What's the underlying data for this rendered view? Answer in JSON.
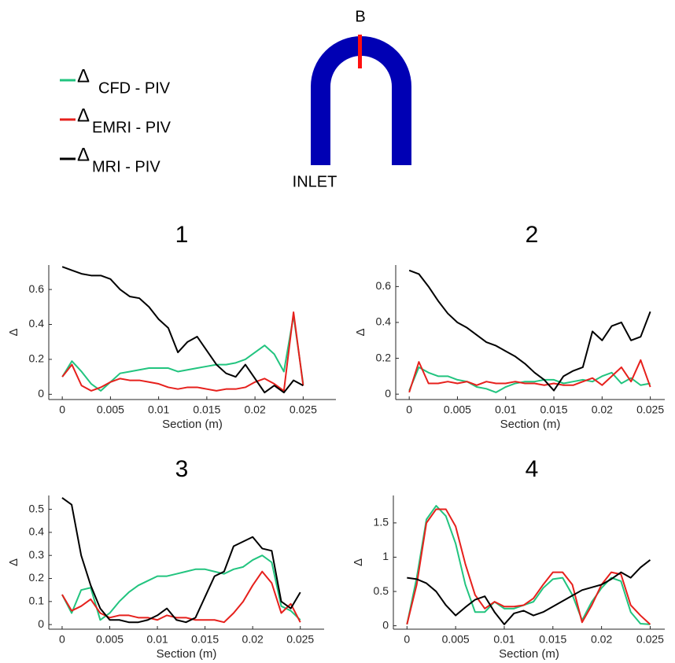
{
  "diagram": {
    "top_label": "B",
    "inlet_label": "INLET"
  },
  "legend": [
    {
      "symbol": "Δ",
      "label": "CFD - PIV",
      "color": "#22c47f"
    },
    {
      "symbol": "Δ",
      "label": "EMRI - PIV",
      "color": "#e6201c"
    },
    {
      "symbol": "Δ",
      "label": "MRI - PIV",
      "color": "#000000"
    }
  ],
  "chart_data": [
    {
      "type": "line",
      "title": "1",
      "xlabel": "Section (m)",
      "ylabel": "Δ",
      "x": [
        0,
        0.001,
        0.002,
        0.003,
        0.004,
        0.005,
        0.006,
        0.007,
        0.008,
        0.009,
        0.01,
        0.011,
        0.012,
        0.013,
        0.014,
        0.015,
        0.016,
        0.017,
        0.018,
        0.019,
        0.02,
        0.021,
        0.022,
        0.023,
        0.024,
        0.025
      ],
      "xlim": [
        -0.0014,
        0.0284
      ],
      "xticks": [
        0,
        0.005,
        0.01,
        0.015,
        0.02,
        0.025
      ],
      "ylim": [
        -0.03,
        0.74
      ],
      "yticks": [
        0,
        0.2,
        0.4,
        0.6
      ],
      "series": [
        {
          "color": "#22c47f",
          "values": [
            0.1,
            0.19,
            0.13,
            0.06,
            0.02,
            0.07,
            0.12,
            0.13,
            0.14,
            0.15,
            0.15,
            0.15,
            0.13,
            0.14,
            0.15,
            0.16,
            0.17,
            0.17,
            0.18,
            0.2,
            0.24,
            0.28,
            0.23,
            0.13,
            0.45,
            0.06
          ]
        },
        {
          "color": "#e6201c",
          "values": [
            0.1,
            0.17,
            0.05,
            0.02,
            0.04,
            0.07,
            0.09,
            0.08,
            0.08,
            0.07,
            0.06,
            0.04,
            0.03,
            0.04,
            0.04,
            0.03,
            0.02,
            0.03,
            0.03,
            0.04,
            0.07,
            0.09,
            0.06,
            0.02,
            0.47,
            0.05
          ]
        },
        {
          "color": "#000000",
          "values": [
            0.73,
            0.71,
            0.69,
            0.68,
            0.68,
            0.66,
            0.6,
            0.56,
            0.55,
            0.5,
            0.43,
            0.38,
            0.24,
            0.3,
            0.33,
            0.25,
            0.17,
            0.12,
            0.1,
            0.17,
            0.09,
            0.01,
            0.05,
            0.01,
            0.08,
            0.05
          ]
        }
      ]
    },
    {
      "type": "line",
      "title": "2",
      "xlabel": "Section (m)",
      "ylabel": "Δ",
      "x": [
        0,
        0.001,
        0.002,
        0.003,
        0.004,
        0.005,
        0.006,
        0.007,
        0.008,
        0.009,
        0.01,
        0.011,
        0.012,
        0.013,
        0.014,
        0.015,
        0.016,
        0.017,
        0.018,
        0.019,
        0.02,
        0.021,
        0.022,
        0.023,
        0.024,
        0.025
      ],
      "xlim": [
        -0.0014,
        0.0265
      ],
      "xticks": [
        0,
        0.005,
        0.01,
        0.015,
        0.02,
        0.025
      ],
      "ylim": [
        -0.03,
        0.72
      ],
      "yticks": [
        0,
        0.2,
        0.4,
        0.6
      ],
      "series": [
        {
          "color": "#22c47f",
          "values": [
            0.02,
            0.15,
            0.12,
            0.1,
            0.1,
            0.08,
            0.07,
            0.04,
            0.03,
            0.01,
            0.04,
            0.06,
            0.07,
            0.07,
            0.08,
            0.08,
            0.06,
            0.07,
            0.08,
            0.07,
            0.1,
            0.12,
            0.06,
            0.09,
            0.05,
            0.06
          ]
        },
        {
          "color": "#e6201c",
          "values": [
            0.01,
            0.18,
            0.06,
            0.06,
            0.07,
            0.06,
            0.07,
            0.05,
            0.07,
            0.06,
            0.06,
            0.07,
            0.06,
            0.06,
            0.05,
            0.06,
            0.05,
            0.05,
            0.07,
            0.09,
            0.05,
            0.1,
            0.15,
            0.07,
            0.19,
            0.04
          ]
        },
        {
          "color": "#000000",
          "values": [
            0.69,
            0.67,
            0.6,
            0.52,
            0.45,
            0.4,
            0.37,
            0.33,
            0.29,
            0.27,
            0.24,
            0.21,
            0.17,
            0.12,
            0.08,
            0.02,
            0.1,
            0.13,
            0.15,
            0.35,
            0.3,
            0.38,
            0.4,
            0.3,
            0.32,
            0.46
          ]
        }
      ]
    },
    {
      "type": "line",
      "title": "3",
      "xlabel": "Section (m)",
      "ylabel": "Δ",
      "x": [
        0,
        0.001,
        0.002,
        0.003,
        0.004,
        0.005,
        0.006,
        0.007,
        0.008,
        0.009,
        0.01,
        0.011,
        0.012,
        0.013,
        0.014,
        0.015,
        0.016,
        0.017,
        0.018,
        0.019,
        0.02,
        0.021,
        0.022,
        0.023,
        0.024,
        0.025
      ],
      "xlim": [
        -0.0014,
        0.0275
      ],
      "xticks": [
        0,
        0.005,
        0.01,
        0.015,
        0.02,
        0.025
      ],
      "ylim": [
        -0.02,
        0.56
      ],
      "yticks": [
        0,
        0.1,
        0.2,
        0.3,
        0.4,
        0.5
      ],
      "series": [
        {
          "color": "#22c47f",
          "values": [
            0.13,
            0.05,
            0.15,
            0.16,
            0.02,
            0.05,
            0.1,
            0.14,
            0.17,
            0.19,
            0.21,
            0.21,
            0.22,
            0.23,
            0.24,
            0.24,
            0.23,
            0.22,
            0.24,
            0.25,
            0.28,
            0.3,
            0.27,
            0.08,
            0.06,
            0.02
          ]
        },
        {
          "color": "#e6201c",
          "values": [
            0.13,
            0.06,
            0.08,
            0.11,
            0.05,
            0.03,
            0.04,
            0.04,
            0.03,
            0.03,
            0.02,
            0.04,
            0.03,
            0.03,
            0.02,
            0.02,
            0.02,
            0.01,
            0.05,
            0.1,
            0.17,
            0.23,
            0.18,
            0.05,
            0.09,
            0.01
          ]
        },
        {
          "color": "#000000",
          "values": [
            0.55,
            0.52,
            0.3,
            0.17,
            0.07,
            0.02,
            0.02,
            0.01,
            0.01,
            0.02,
            0.04,
            0.07,
            0.02,
            0.01,
            0.03,
            0.12,
            0.21,
            0.23,
            0.34,
            0.36,
            0.38,
            0.33,
            0.32,
            0.1,
            0.07,
            0.14
          ]
        }
      ]
    },
    {
      "type": "line",
      "title": "4",
      "xlabel": "Section (m)",
      "ylabel": "Δ",
      "x": [
        0,
        0.001,
        0.002,
        0.003,
        0.004,
        0.005,
        0.006,
        0.007,
        0.008,
        0.009,
        0.01,
        0.011,
        0.012,
        0.013,
        0.014,
        0.015,
        0.016,
        0.017,
        0.018,
        0.019,
        0.02,
        0.021,
        0.022,
        0.023,
        0.024,
        0.025
      ],
      "xlim": [
        -0.0014,
        0.0265
      ],
      "xticks": [
        0,
        0.005,
        0.01,
        0.015,
        0.02,
        0.025
      ],
      "ylim": [
        -0.05,
        1.9
      ],
      "yticks": [
        0,
        0.5,
        1,
        1.5
      ],
      "series": [
        {
          "color": "#22c47f",
          "values": [
            0.02,
            0.7,
            1.55,
            1.75,
            1.6,
            1.2,
            0.6,
            0.2,
            0.2,
            0.35,
            0.25,
            0.25,
            0.3,
            0.35,
            0.55,
            0.68,
            0.7,
            0.45,
            0.08,
            0.35,
            0.55,
            0.7,
            0.65,
            0.2,
            0.03,
            0.02
          ]
        },
        {
          "color": "#e6201c",
          "values": [
            0.02,
            0.6,
            1.5,
            1.7,
            1.7,
            1.45,
            0.9,
            0.45,
            0.25,
            0.35,
            0.28,
            0.28,
            0.3,
            0.4,
            0.6,
            0.78,
            0.78,
            0.6,
            0.05,
            0.3,
            0.6,
            0.78,
            0.75,
            0.3,
            0.15,
            0.02
          ]
        },
        {
          "color": "#000000",
          "values": [
            0.7,
            0.68,
            0.62,
            0.5,
            0.3,
            0.15,
            0.27,
            0.38,
            0.43,
            0.2,
            0.02,
            0.18,
            0.22,
            0.15,
            0.2,
            0.28,
            0.36,
            0.44,
            0.52,
            0.56,
            0.6,
            0.68,
            0.78,
            0.7,
            0.85,
            0.96
          ]
        }
      ]
    }
  ]
}
